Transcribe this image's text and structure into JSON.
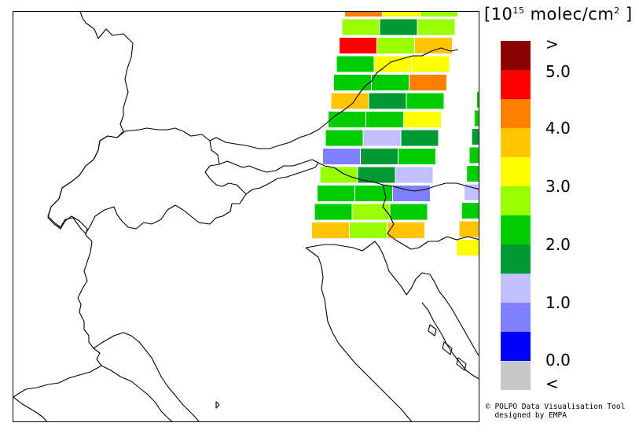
{
  "legend": {
    "unit_prefix": "[10",
    "unit_exponent": "15",
    "unit_mid": " molec/cm",
    "unit_exp2": "2",
    "unit_suffix": " ]",
    "ticks": [
      ">",
      "5.0",
      "4.0",
      "3.0",
      "2.0",
      "1.0",
      "0.0",
      "<"
    ],
    "colors": [
      "#8b0000",
      "#ff0000",
      "#ff7f00",
      "#ffc400",
      "#ffff00",
      "#99ff00",
      "#00cc00",
      "#009933",
      "#c0c0ff",
      "#8080ff",
      "#0000ff",
      "#c8c8c8"
    ]
  },
  "credit": {
    "line1": "© POLPO Data Visualisation Tool",
    "line2": "  designed by EMPA"
  },
  "swath1_cells": [
    [
      "#ff7f00",
      "#ffff00",
      "#99ff00"
    ],
    [
      "#99ff00",
      "#009933",
      "#99ff00"
    ],
    [
      "#ff0000",
      "#99ff00",
      "#ffc400"
    ],
    [
      "#00cc00",
      "#ffff00",
      "#ffff00"
    ],
    [
      "#00cc00",
      "#00cc00",
      "#ff7f00"
    ],
    [
      "#ffc400",
      "#009933",
      "#00cc00"
    ],
    [
      "#00cc00",
      "#00cc00",
      "#ffff00"
    ],
    [
      "#00cc00",
      "#c0c0ff",
      "#009933"
    ],
    [
      "#8080ff",
      "#009933",
      "#00cc00"
    ],
    [
      "#99ff00",
      "#009933",
      "#c0c0ff"
    ],
    [
      "#00cc00",
      "#00cc00",
      "#8080ff"
    ],
    [
      "#00cc00",
      "#99ff00",
      "#00cc00"
    ],
    [
      "#ffc400",
      "#99ff00",
      "#ffc400"
    ]
  ],
  "swath2_cells": [
    "#00cc00",
    "#00cc00",
    "#009933",
    "#00cc00",
    "#00cc00",
    "#c0c0ff",
    "#00cc00",
    "#ffc400",
    "#ffff00"
  ]
}
